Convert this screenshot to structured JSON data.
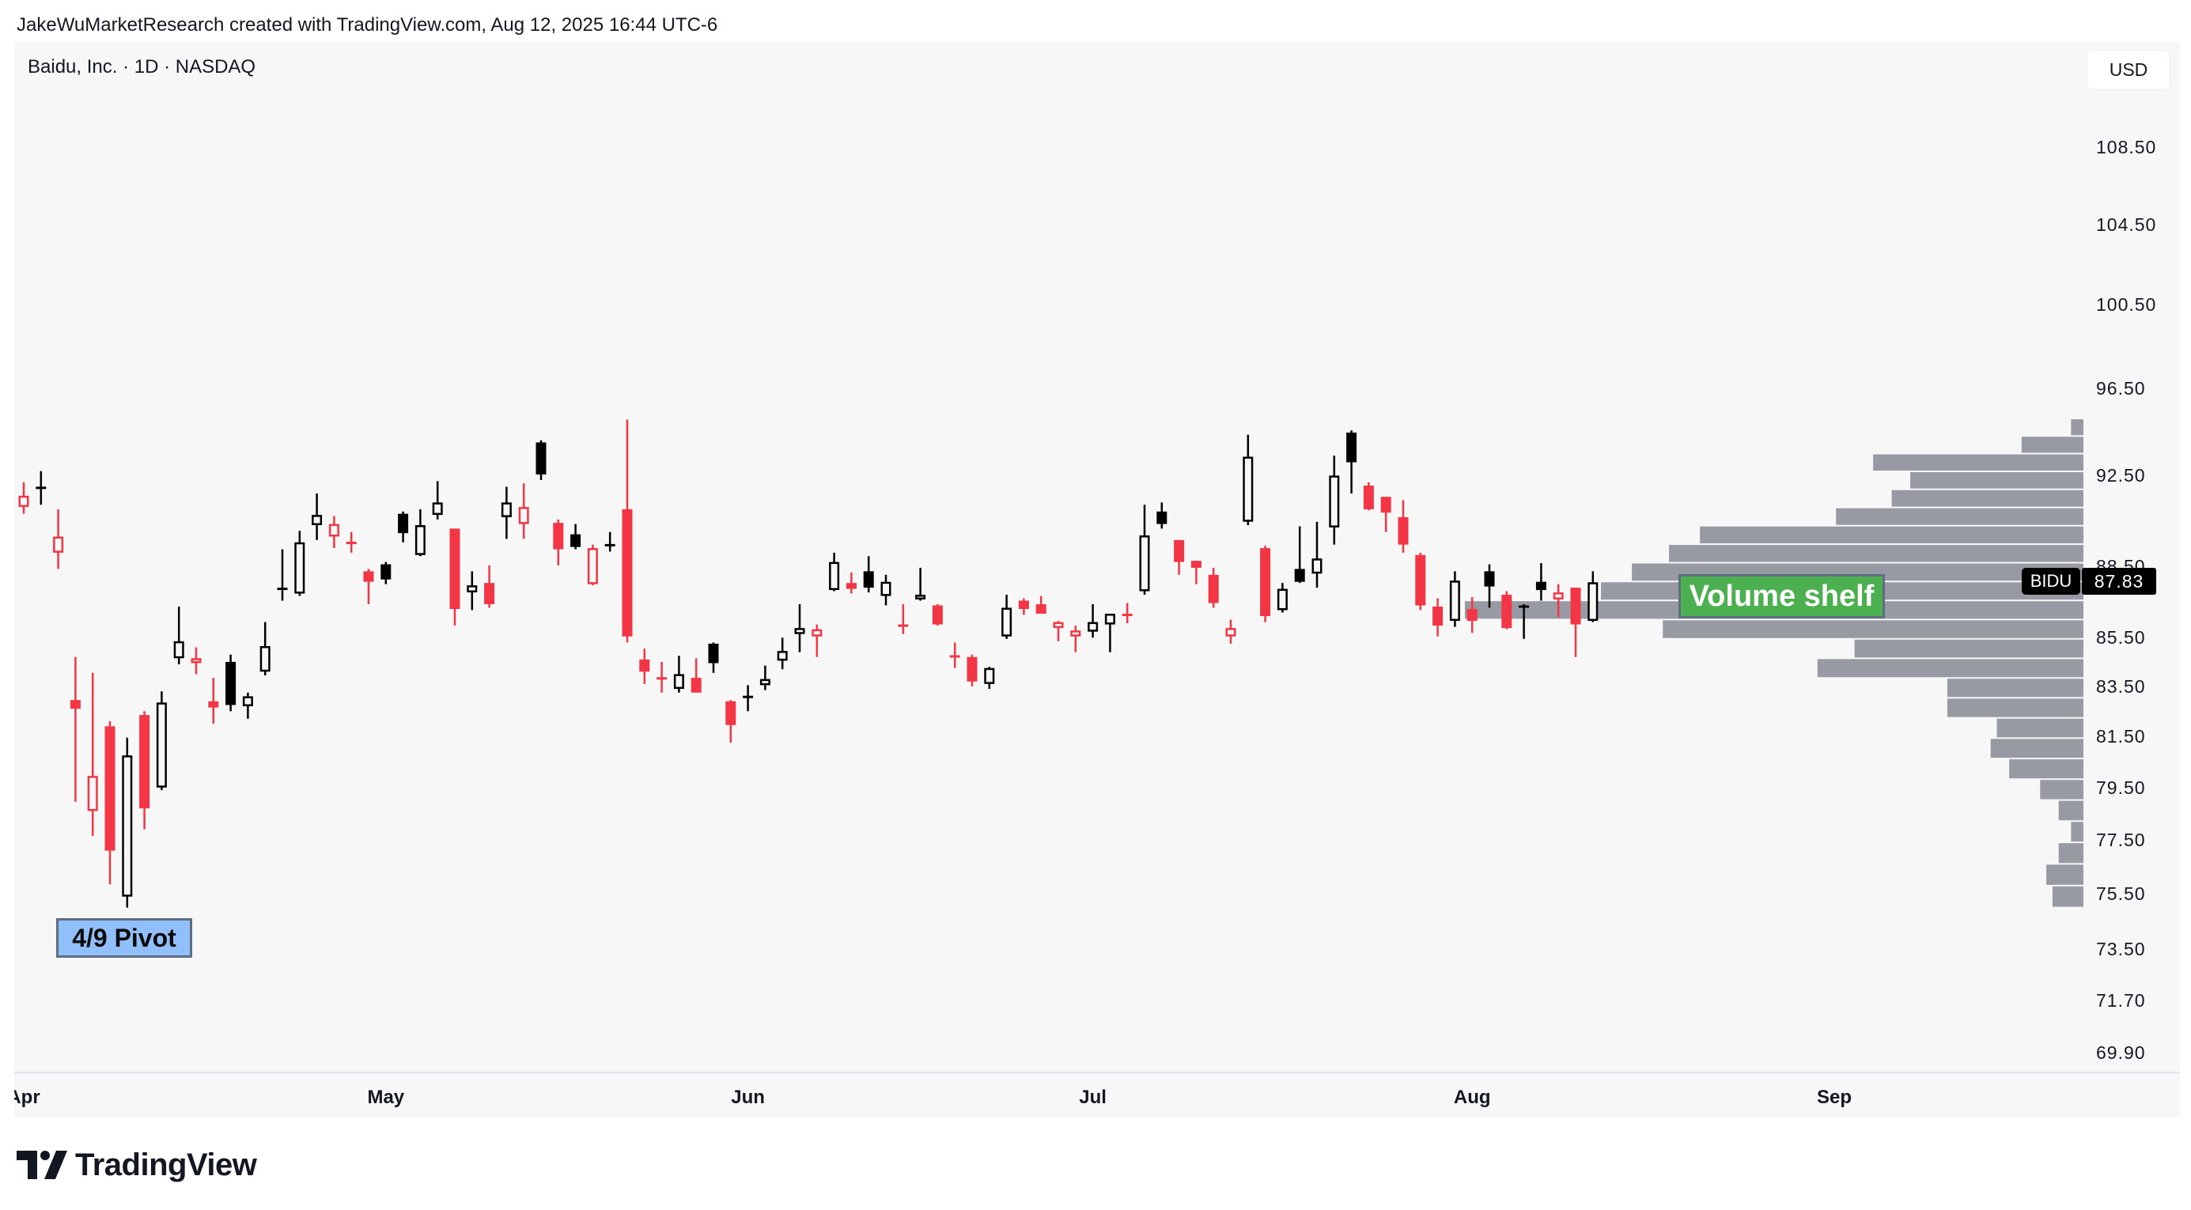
{
  "attribution": "JakeWuMarketResearch created with TradingView.com, Aug 12, 2025 16:44 UTC-6",
  "chart_header": {
    "title": "Baidu, Inc. · 1D · NASDAQ",
    "currency": "USD"
  },
  "last_price": {
    "symbol": "BIDU",
    "value": "87.83"
  },
  "annotations": {
    "pivot": "4/9 Pivot",
    "shelf": "Volume shelf"
  },
  "footer": {
    "logo_text": "TradingView"
  },
  "colors": {
    "down": "#f23645",
    "up": "#000000",
    "panel": "#f7f7f7",
    "volume_profile": "#979aa3",
    "pivot_label": "#90bff9",
    "shelf_label": "#4caf50"
  },
  "chart_data": {
    "type": "candlestick",
    "style": "hollow candles",
    "y_scale": "log",
    "ylim": [
      69.9,
      108.5
    ],
    "y_ticks": [
      "108.50",
      "104.50",
      "100.50",
      "96.50",
      "92.50",
      "88.50",
      "85.50",
      "83.50",
      "81.50",
      "79.50",
      "77.50",
      "75.50",
      "73.50",
      "71.70",
      "69.90"
    ],
    "x_ticks": [
      {
        "label": "Apr",
        "date": "2025-04-01"
      },
      {
        "label": "May",
        "date": "2025-05-01"
      },
      {
        "label": "Jun",
        "date": "2025-06-02"
      },
      {
        "label": "Jul",
        "date": "2025-07-01"
      },
      {
        "label": "Aug",
        "date": "2025-08-01"
      },
      {
        "label": "Sep",
        "date": "2025-09-02"
      }
    ],
    "first_candle_color": "red",
    "columns": [
      "date",
      "open",
      "high",
      "low",
      "close"
    ],
    "candles": [
      [
        "2025-04-01",
        91.1,
        92.2,
        90.8,
        91.6
      ],
      [
        "2025-04-02",
        91.9,
        92.7,
        91.2,
        92.0
      ],
      [
        "2025-04-03",
        89.1,
        91.0,
        88.4,
        89.8
      ],
      [
        "2025-04-04",
        82.95,
        84.7,
        78.95,
        82.6
      ],
      [
        "2025-04-07",
        78.6,
        84.05,
        77.65,
        79.95
      ],
      [
        "2025-04-08",
        81.9,
        82.1,
        75.85,
        77.1
      ],
      [
        "2025-04-09",
        75.4,
        81.45,
        75.0,
        80.75
      ],
      [
        "2025-04-10",
        82.35,
        82.5,
        77.9,
        78.7
      ],
      [
        "2025-04-11",
        79.5,
        83.3,
        79.4,
        82.85
      ],
      [
        "2025-04-14",
        84.65,
        86.8,
        84.4,
        85.35
      ],
      [
        "2025-04-15",
        84.45,
        85.1,
        84.0,
        84.65
      ],
      [
        "2025-04-16",
        82.9,
        83.85,
        82.0,
        82.65
      ],
      [
        "2025-04-17",
        84.5,
        84.8,
        82.5,
        82.75
      ],
      [
        "2025-04-21",
        82.7,
        83.25,
        82.2,
        83.1
      ],
      [
        "2025-04-22",
        84.1,
        86.15,
        83.95,
        85.15
      ],
      [
        "2025-04-23",
        87.5,
        89.25,
        87.05,
        87.6
      ],
      [
        "2025-04-24",
        87.35,
        90.05,
        87.25,
        89.55
      ],
      [
        "2025-04-25",
        90.3,
        91.7,
        89.65,
        90.75
      ],
      [
        "2025-04-28",
        89.8,
        90.7,
        89.3,
        90.35
      ],
      [
        "2025-04-29",
        89.5,
        90.0,
        89.1,
        89.55
      ],
      [
        "2025-04-30",
        88.3,
        88.4,
        86.9,
        87.85
      ],
      [
        "2025-05-01",
        88.6,
        88.7,
        87.75,
        87.95
      ],
      [
        "2025-05-02",
        90.8,
        90.9,
        89.55,
        89.95
      ],
      [
        "2025-05-05",
        89.0,
        91.0,
        88.95,
        90.3
      ],
      [
        "2025-05-06",
        90.75,
        92.25,
        90.55,
        91.3
      ],
      [
        "2025-05-07",
        90.15,
        90.15,
        86.0,
        86.7
      ],
      [
        "2025-05-08",
        87.4,
        88.3,
        86.65,
        87.7
      ],
      [
        "2025-05-09",
        87.8,
        88.55,
        86.75,
        86.9
      ],
      [
        "2025-05-12",
        90.65,
        92.0,
        89.7,
        91.3
      ],
      [
        "2025-05-13",
        90.35,
        92.15,
        89.7,
        91.1
      ],
      [
        "2025-05-14",
        94.0,
        94.1,
        92.3,
        92.55
      ],
      [
        "2025-05-15",
        90.4,
        90.55,
        88.55,
        89.25
      ],
      [
        "2025-05-16",
        89.9,
        90.35,
        89.25,
        89.35
      ],
      [
        "2025-05-19",
        87.75,
        89.45,
        87.7,
        89.3
      ],
      [
        "2025-05-20",
        89.4,
        90.0,
        89.15,
        89.45
      ],
      [
        "2025-05-21",
        91.0,
        95.05,
        85.3,
        85.55
      ],
      [
        "2025-05-22",
        84.6,
        85.05,
        83.6,
        84.1
      ],
      [
        "2025-05-23",
        83.85,
        84.5,
        83.25,
        83.8
      ],
      [
        "2025-05-27",
        83.4,
        84.75,
        83.25,
        84.0
      ],
      [
        "2025-05-28",
        83.85,
        84.65,
        83.25,
        83.25
      ],
      [
        "2025-05-29",
        85.25,
        85.3,
        84.05,
        84.45
      ],
      [
        "2025-05-30",
        82.9,
        82.95,
        81.25,
        81.95
      ],
      [
        "2025-06-02",
        83.05,
        83.55,
        82.5,
        83.1
      ],
      [
        "2025-06-03",
        83.55,
        84.35,
        83.35,
        83.8
      ],
      [
        "2025-06-04",
        84.55,
        85.5,
        84.2,
        84.95
      ],
      [
        "2025-06-05",
        85.65,
        86.9,
        84.9,
        85.9
      ],
      [
        "2025-06-06",
        85.55,
        86.05,
        84.7,
        85.85
      ],
      [
        "2025-06-09",
        87.5,
        89.1,
        87.45,
        88.7
      ],
      [
        "2025-06-10",
        87.8,
        88.25,
        87.35,
        87.55
      ],
      [
        "2025-06-11",
        88.3,
        88.95,
        87.4,
        87.6
      ],
      [
        "2025-06-12",
        87.25,
        88.15,
        86.85,
        87.85
      ],
      [
        "2025-06-13",
        86.0,
        86.9,
        85.65,
        86.0
      ],
      [
        "2025-06-16",
        87.1,
        88.45,
        87.05,
        87.3
      ],
      [
        "2025-06-17",
        86.85,
        86.9,
        86.0,
        86.05
      ],
      [
        "2025-06-18",
        84.75,
        85.3,
        84.25,
        84.7
      ],
      [
        "2025-06-20",
        84.7,
        84.8,
        83.5,
        83.7
      ],
      [
        "2025-06-23",
        83.6,
        84.3,
        83.4,
        84.25
      ],
      [
        "2025-06-24",
        85.55,
        87.3,
        85.45,
        86.75
      ],
      [
        "2025-06-25",
        87.05,
        87.15,
        86.45,
        86.7
      ],
      [
        "2025-06-26",
        86.9,
        87.25,
        86.5,
        86.5
      ],
      [
        "2025-06-27",
        85.9,
        86.2,
        85.35,
        86.15
      ],
      [
        "2025-06-30",
        85.55,
        86.0,
        84.9,
        85.8
      ],
      [
        "2025-07-01",
        85.75,
        86.9,
        85.5,
        86.15
      ],
      [
        "2025-07-02",
        86.05,
        86.5,
        84.9,
        86.5
      ],
      [
        "2025-07-03",
        86.45,
        86.95,
        86.1,
        86.45
      ],
      [
        "2025-07-07",
        87.45,
        91.2,
        87.3,
        89.85
      ],
      [
        "2025-07-08",
        90.9,
        91.3,
        90.15,
        90.35
      ],
      [
        "2025-07-09",
        89.65,
        89.65,
        88.15,
        88.7
      ],
      [
        "2025-07-10",
        88.75,
        88.75,
        87.75,
        88.45
      ],
      [
        "2025-07-11",
        88.15,
        88.45,
        86.75,
        86.95
      ],
      [
        "2025-07-14",
        85.55,
        86.25,
        85.25,
        85.9
      ],
      [
        "2025-07-15",
        90.45,
        94.35,
        90.3,
        93.35
      ],
      [
        "2025-07-16",
        89.3,
        89.4,
        86.15,
        86.4
      ],
      [
        "2025-07-17",
        86.65,
        87.8,
        86.55,
        87.55
      ],
      [
        "2025-07-18",
        88.4,
        90.25,
        87.8,
        87.85
      ],
      [
        "2025-07-21",
        88.2,
        90.45,
        87.6,
        88.85
      ],
      [
        "2025-07-22",
        90.2,
        93.4,
        89.45,
        92.5
      ],
      [
        "2025-07-23",
        94.45,
        94.55,
        91.7,
        93.1
      ],
      [
        "2025-07-24",
        92.05,
        92.2,
        90.95,
        91.0
      ],
      [
        "2025-07-25",
        91.55,
        91.55,
        90.0,
        90.85
      ],
      [
        "2025-07-28",
        90.65,
        91.4,
        89.1,
        89.45
      ],
      [
        "2025-07-29",
        89.0,
        89.1,
        86.65,
        86.85
      ],
      [
        "2025-07-30",
        86.8,
        87.15,
        85.55,
        86.0
      ],
      [
        "2025-07-31",
        86.2,
        88.3,
        85.95,
        87.9
      ],
      [
        "2025-08-01",
        86.7,
        87.2,
        85.7,
        86.2
      ],
      [
        "2025-08-04",
        88.3,
        88.6,
        86.75,
        87.65
      ],
      [
        "2025-08-05",
        87.3,
        87.45,
        85.85,
        85.9
      ],
      [
        "2025-08-06",
        86.75,
        86.9,
        85.45,
        86.85
      ],
      [
        "2025-08-07",
        87.85,
        88.65,
        87.05,
        87.5
      ],
      [
        "2025-08-08",
        87.1,
        87.75,
        86.35,
        87.4
      ],
      [
        "2025-08-11",
        87.6,
        87.6,
        84.7,
        86.05
      ],
      [
        "2025-08-12",
        86.2,
        88.3,
        86.15,
        87.83
      ]
    ],
    "volume_profile": {
      "price_low": 75.0,
      "price_high": 95.1,
      "rows_bottom_to_top_relative_volume": [
        5,
        6,
        4,
        2,
        4,
        7,
        12,
        15,
        14,
        22,
        22,
        43,
        37,
        68,
        100,
        78,
        73,
        67,
        62,
        40,
        31,
        28,
        34,
        10,
        2
      ]
    }
  }
}
